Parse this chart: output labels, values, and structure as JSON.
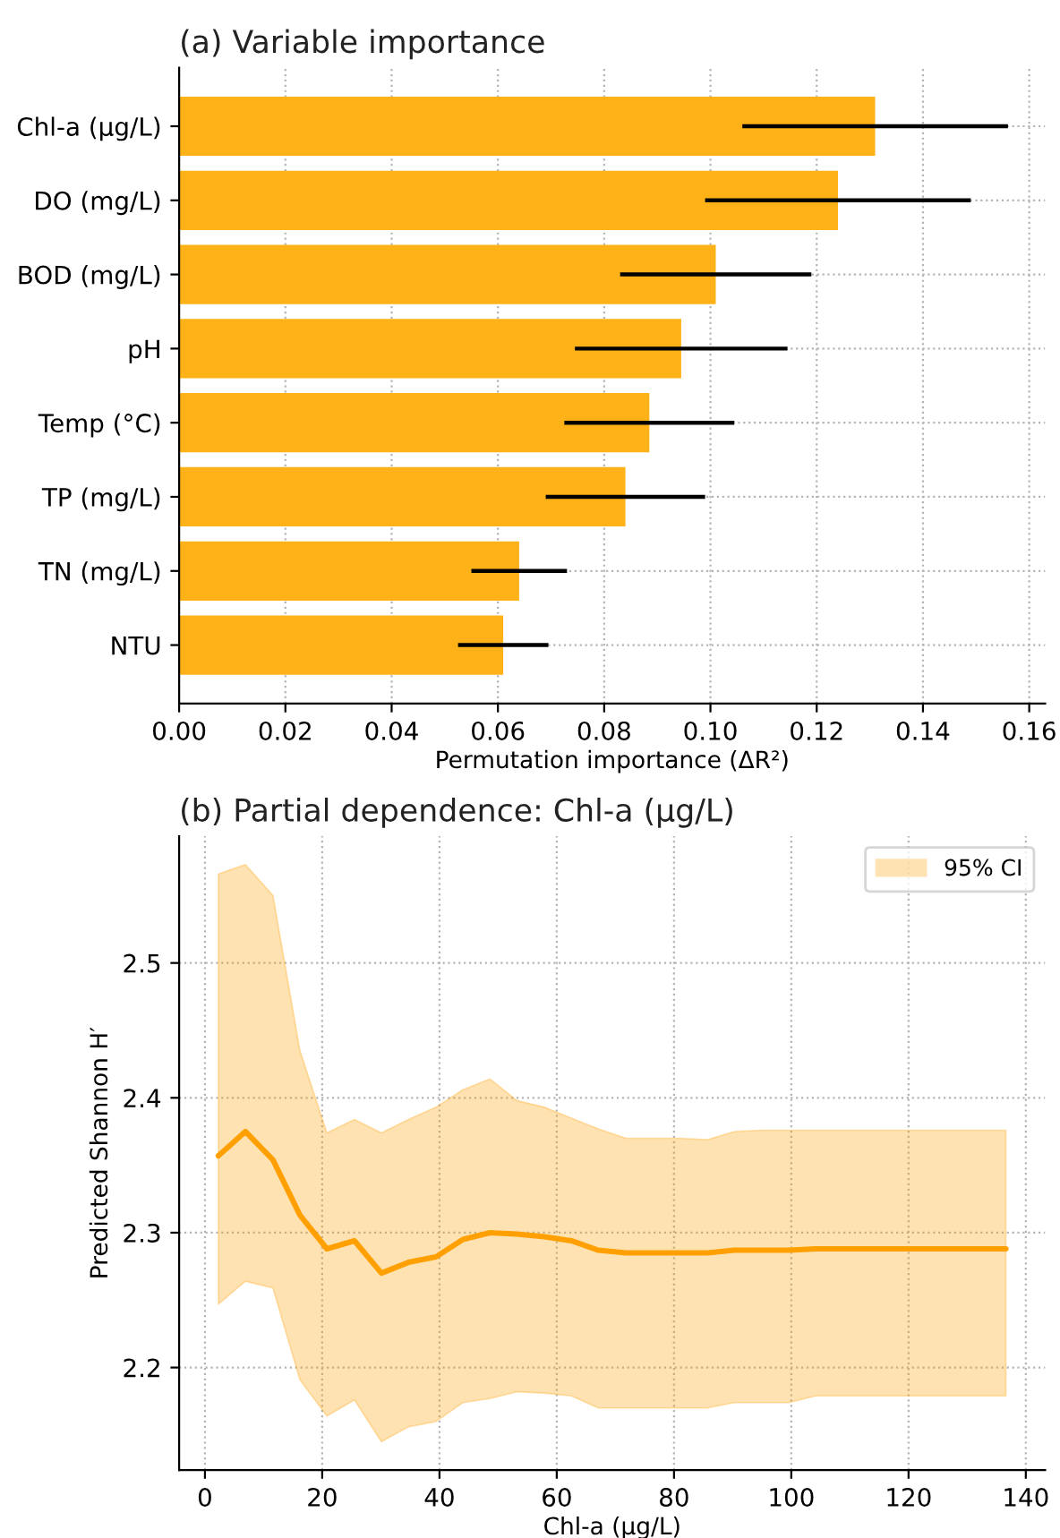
{
  "chart_data": [
    {
      "type": "bar",
      "orientation": "horizontal",
      "title": "(a) Variable importance",
      "xlabel": "Permutation importance (ΔR²)",
      "categories": [
        "Chl-a (µg/L)",
        "DO (mg/L)",
        "BOD (mg/L)",
        "pH",
        "Temp (°C)",
        "TP (mg/L)",
        "TN (mg/L)",
        "NTU"
      ],
      "values": [
        0.131,
        0.124,
        0.101,
        0.0945,
        0.0885,
        0.084,
        0.064,
        0.061
      ],
      "errors": [
        0.025,
        0.025,
        0.018,
        0.02,
        0.016,
        0.015,
        0.009,
        0.0085
      ],
      "color": "#ffb217",
      "xlim": [
        0,
        0.163
      ],
      "xticks": [
        {
          "value": 0,
          "label": "0.00"
        },
        {
          "value": 0.02,
          "label": "0.02"
        },
        {
          "value": 0.04,
          "label": "0.04"
        },
        {
          "value": 0.06,
          "label": "0.06"
        },
        {
          "value": 0.08,
          "label": "0.08"
        },
        {
          "value": 0.1,
          "label": "0.10"
        },
        {
          "value": 0.12,
          "label": "0.12"
        },
        {
          "value": 0.14,
          "label": "0.14"
        },
        {
          "value": 0.16,
          "label": "0.16"
        }
      ],
      "grid": true
    },
    {
      "type": "line",
      "title": "(b) Partial dependence: Chl-a (µg/L)",
      "xlabel": "Chl-a (µg/L)",
      "ylabel": "Predicted Shannon H′",
      "x": [
        2.3,
        6.9,
        11.6,
        16.2,
        20.8,
        25.5,
        30.1,
        34.7,
        39.4,
        44.0,
        48.6,
        53.2,
        57.9,
        62.5,
        67.1,
        71.8,
        76.4,
        81.0,
        85.7,
        90.3,
        94.9,
        99.6,
        104.2,
        108.8,
        113.4,
        118.1,
        122.7,
        127.3,
        132.0,
        136.6
      ],
      "series": [
        {
          "name": "95% CI",
          "color": "#ffa000",
          "values": [
            2.357,
            2.375,
            2.354,
            2.313,
            2.288,
            2.294,
            2.27,
            2.278,
            2.282,
            2.295,
            2.3,
            2.299,
            2.297,
            2.294,
            2.287,
            2.285,
            2.285,
            2.285,
            2.285,
            2.287,
            2.287,
            2.287,
            2.288,
            2.288,
            2.288,
            2.288,
            2.288,
            2.288,
            2.288,
            2.288
          ],
          "lower": [
            2.247,
            2.264,
            2.259,
            2.191,
            2.164,
            2.176,
            2.145,
            2.156,
            2.16,
            2.174,
            2.177,
            2.182,
            2.181,
            2.179,
            2.17,
            2.17,
            2.17,
            2.17,
            2.17,
            2.174,
            2.174,
            2.174,
            2.179,
            2.179,
            2.179,
            2.179,
            2.179,
            2.179,
            2.179,
            2.179
          ],
          "upper": [
            2.566,
            2.573,
            2.55,
            2.435,
            2.374,
            2.384,
            2.374,
            2.384,
            2.393,
            2.406,
            2.414,
            2.398,
            2.393,
            2.385,
            2.377,
            2.37,
            2.37,
            2.37,
            2.369,
            2.375,
            2.376,
            2.376,
            2.376,
            2.376,
            2.376,
            2.376,
            2.376,
            2.376,
            2.376,
            2.376
          ]
        }
      ],
      "xlim": [
        -4.4,
        143.3
      ],
      "xticks": [
        0,
        20,
        40,
        60,
        80,
        100,
        120,
        140
      ],
      "ylim": [
        2.124,
        2.594
      ],
      "yticks": [
        2.2,
        2.3,
        2.4,
        2.5
      ],
      "grid": true,
      "legend": "top right"
    }
  ]
}
